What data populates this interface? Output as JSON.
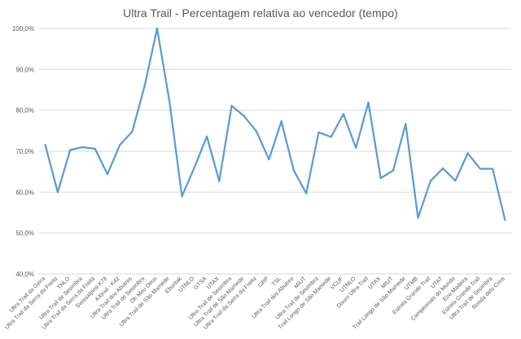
{
  "chart_data": {
    "type": "line",
    "title": "Ultra Trail - Percentagem relativa ao vencedor (tempo)",
    "xlabel": "",
    "ylabel": "",
    "ylim": [
      40,
      100
    ],
    "yticks": [
      "40,0%",
      "50,0%",
      "60,0%",
      "70,0%",
      "80,0%",
      "90,0%",
      "100,0%"
    ],
    "grid": true,
    "line_color": "#5b9bd5",
    "categories": [
      "Ultra Trail da Geira",
      "Ultra Trail da Serra da Freita",
      "TNLO",
      "Ultra Trail de Sesimbra",
      "Ultra Trail da Serra da Freita",
      "Swissalpine K78",
      "AXtrail - K42",
      "Ultra Trail dos Abutres",
      "Ultra Trail de Sesimbra",
      "Oh Meu Deus",
      "Ultra Trail de São Mamede",
      "Eburitak",
      "UTNLO",
      "GTSA",
      "UTAX",
      "Ultra Trail de Sesimbra",
      "Ultra Trail de São Mamede",
      "Ultra Trail da Serra da Freita",
      "GRP",
      "TSL",
      "Ultra Trail dos Abutres",
      "MIUT",
      "Ultra Trail de Sesimbra",
      "Trail Longo de São Mamede",
      "VCUF",
      "UTNLO",
      "Douro Ultra Trail",
      "UTAX",
      "MIUT",
      "Trail Longo de São Mamede",
      "UTMB",
      "Estrela Grande Trail",
      "UTAT",
      "Campeonato do Mundo",
      "Eco Madeira",
      "Estrela Grande Trail",
      "Ultra Trail de Sesimbra",
      "Ronda dels Cims"
    ],
    "series": [
      {
        "values": [
          71.5,
          60.0,
          70.3,
          71.0,
          70.6,
          64.4,
          71.5,
          74.8,
          86.0,
          100.0,
          82.0,
          59.0,
          66.0,
          73.6,
          62.7,
          81.1,
          78.6,
          74.8,
          68.0,
          77.3,
          65.3,
          59.7,
          74.6,
          73.5,
          79.1,
          70.8,
          81.9,
          63.4,
          65.3,
          76.7,
          53.7,
          62.7,
          65.8,
          62.8,
          69.5,
          65.7,
          65.7,
          53.2
        ]
      }
    ]
  }
}
